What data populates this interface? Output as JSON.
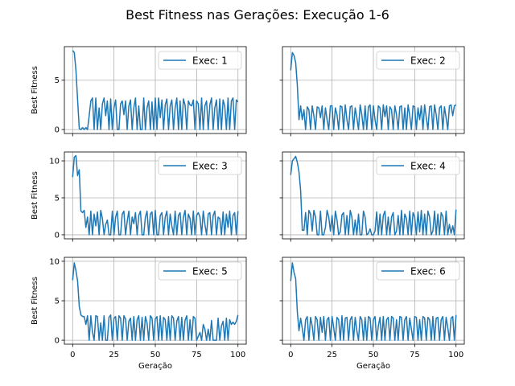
{
  "figure": {
    "title": "Best Fitness nas Gerações: Execução 1-6",
    "series_color": "#1f77b4",
    "grid": true,
    "shared_y_axis_per_row": true
  },
  "chart_data": [
    {
      "type": "line",
      "xlabel": "",
      "ylabel": "Best Fitness",
      "xlim": [
        -5,
        105
      ],
      "ylim": [
        -0.4,
        8.4
      ],
      "xticks": [
        0,
        25,
        50,
        75,
        100
      ],
      "yticks": [
        0,
        5
      ],
      "ytick_labels_shown": true,
      "xtick_labels_shown": false,
      "legend_position": "upper right",
      "series": [
        {
          "name": "Exec: 1",
          "y": [
            8.0,
            7.8,
            6.0,
            3.0,
            0.1,
            0.0,
            0.2,
            0.0,
            0.2,
            0.0,
            1.4,
            2.9,
            3.2,
            0.0,
            3.2,
            0.0,
            2.2,
            0.0,
            2.6,
            3.2,
            1.4,
            2.9,
            0.0,
            3.1,
            0.0,
            2.2,
            3.0,
            0.0,
            0.0,
            2.6,
            2.9,
            1.5,
            2.9,
            0.0,
            2.4,
            3.0,
            0.0,
            2.2,
            3.2,
            0.0,
            2.4,
            0.0,
            0.0,
            3.2,
            0.0,
            2.2,
            2.9,
            0.0,
            2.8,
            0.0,
            3.2,
            0.0,
            3.2,
            1.2,
            3.0,
            0.0,
            2.5,
            3.1,
            0.0,
            2.4,
            3.0,
            0.0,
            2.2,
            3.2,
            0.0,
            2.9,
            0.0,
            3.1,
            2.5,
            0.0,
            2.9,
            2.5,
            2.4,
            3.0,
            0.0,
            2.9,
            2.6,
            0.0,
            3.2,
            0.0,
            2.4,
            2.9,
            0.0,
            2.5,
            3.2,
            0.0,
            2.2,
            3.0,
            0.0,
            3.1,
            0.0,
            3.0,
            2.4,
            0.0,
            3.2,
            0.0,
            2.9,
            3.2,
            0.0,
            3.0,
            2.8
          ]
        }
      ]
    },
    {
      "type": "line",
      "xlabel": "",
      "ylabel": "",
      "xlim": [
        -5,
        105
      ],
      "ylim": [
        -0.4,
        8.4
      ],
      "xticks": [
        0,
        25,
        50,
        75,
        100
      ],
      "yticks": [
        0,
        5
      ],
      "ytick_labels_shown": false,
      "xtick_labels_shown": false,
      "legend_position": "upper right",
      "series": [
        {
          "name": "Exec: 2",
          "y": [
            6.0,
            7.8,
            7.5,
            6.8,
            4.5,
            1.0,
            2.4,
            1.0,
            2.0,
            0.0,
            2.3,
            2.0,
            0.0,
            2.4,
            1.4,
            0.0,
            2.3,
            2.2,
            1.2,
            2.4,
            0.0,
            2.2,
            1.0,
            0.0,
            2.4,
            2.4,
            0.0,
            2.2,
            1.5,
            0.0,
            2.4,
            2.3,
            0.0,
            2.5,
            1.0,
            0.0,
            2.3,
            2.4,
            0.0,
            2.2,
            1.2,
            0.0,
            2.5,
            1.5,
            0.0,
            2.4,
            0.0,
            2.3,
            2.5,
            0.0,
            2.4,
            1.0,
            0.0,
            2.4,
            2.2,
            0.0,
            2.5,
            1.3,
            2.4,
            0.0,
            2.3,
            2.0,
            0.0,
            2.4,
            1.5,
            0.0,
            2.3,
            2.4,
            0.0,
            2.2,
            0.0,
            2.5,
            1.4,
            0.0,
            2.4,
            2.3,
            0.0,
            2.2,
            1.0,
            2.4,
            0.0,
            2.5,
            1.2,
            0.0,
            2.3,
            2.4,
            0.0,
            2.5,
            1.5,
            0.0,
            2.2,
            2.4,
            0.0,
            2.3,
            1.2,
            0.0,
            2.4,
            2.5,
            1.4,
            2.4,
            2.5
          ]
        }
      ]
    },
    {
      "type": "line",
      "xlabel": "",
      "ylabel": "Best Fitness",
      "xlim": [
        -5,
        105
      ],
      "ylim": [
        -0.55,
        11.2
      ],
      "xticks": [
        0,
        25,
        50,
        75,
        100
      ],
      "yticks": [
        0,
        5,
        10
      ],
      "ytick_labels_shown": true,
      "xtick_labels_shown": false,
      "legend_position": "upper right",
      "series": [
        {
          "name": "Exec: 3",
          "y": [
            7.8,
            10.5,
            10.7,
            8.0,
            8.8,
            3.2,
            3.0,
            3.3,
            1.0,
            2.4,
            0.0,
            3.2,
            0.0,
            2.8,
            1.2,
            3.1,
            0.0,
            3.3,
            2.2,
            0.0,
            1.4,
            2.0,
            0.0,
            0.0,
            3.2,
            0.0,
            2.4,
            3.2,
            0.0,
            0.0,
            2.8,
            3.2,
            0.0,
            1.8,
            3.2,
            0.0,
            2.4,
            1.5,
            3.0,
            0.0,
            2.6,
            3.2,
            0.0,
            0.0,
            2.4,
            3.2,
            0.0,
            2.8,
            3.1,
            0.0,
            3.3,
            0.0,
            0.0,
            2.6,
            3.0,
            0.0,
            2.4,
            3.2,
            0.0,
            2.8,
            1.2,
            0.0,
            3.2,
            0.0,
            2.6,
            3.0,
            0.0,
            2.4,
            3.3,
            0.0,
            2.8,
            2.2,
            0.0,
            3.2,
            0.0,
            2.6,
            3.0,
            2.4,
            0.0,
            3.2,
            1.4,
            0.0,
            2.8,
            3.0,
            0.0,
            2.6,
            3.2,
            0.0,
            2.4,
            2.2,
            0.0,
            3.1,
            0.0,
            2.8,
            1.0,
            3.2,
            0.0,
            2.6,
            3.0,
            0.0,
            3.2
          ]
        }
      ]
    },
    {
      "type": "line",
      "xlabel": "",
      "ylabel": "",
      "xlim": [
        -5,
        105
      ],
      "ylim": [
        -0.55,
        11.2
      ],
      "xticks": [
        0,
        25,
        50,
        75,
        100
      ],
      "yticks": [
        0,
        5,
        10
      ],
      "ytick_labels_shown": false,
      "xtick_labels_shown": false,
      "legend_position": "upper right",
      "series": [
        {
          "name": "Exec: 4",
          "y": [
            8.1,
            10.0,
            10.3,
            10.6,
            9.8,
            8.5,
            6.0,
            0.6,
            0.6,
            3.0,
            0.0,
            3.3,
            2.8,
            0.5,
            3.3,
            2.4,
            0.0,
            0.0,
            3.2,
            0.0,
            0.0,
            1.0,
            3.3,
            2.4,
            0.5,
            2.6,
            0.0,
            3.2,
            2.0,
            0.0,
            0.4,
            2.7,
            3.0,
            0.0,
            2.6,
            0.0,
            3.3,
            2.4,
            0.0,
            2.0,
            0.0,
            2.8,
            0.0,
            0.0,
            3.2,
            2.4,
            0.0,
            0.2,
            0.8,
            0.0,
            0.0,
            0.5,
            3.1,
            0.0,
            2.8,
            0.0,
            2.6,
            3.2,
            0.0,
            2.4,
            0.0,
            2.4,
            3.0,
            0.0,
            0.5,
            2.6,
            0.0,
            3.3,
            0.0,
            2.8,
            2.2,
            0.0,
            3.2,
            0.0,
            3.0,
            2.4,
            0.0,
            3.1,
            0.4,
            3.3,
            0.0,
            2.8,
            0.0,
            3.2,
            2.4,
            0.0,
            0.5,
            3.2,
            0.0,
            2.8,
            0.0,
            3.0,
            2.5,
            0.0,
            3.2,
            0.0,
            1.4,
            0.2,
            1.2,
            0.0,
            3.4
          ]
        }
      ]
    },
    {
      "type": "line",
      "xlabel": "Geração",
      "ylabel": "Best Fitness",
      "xlim": [
        -5,
        105
      ],
      "ylim": [
        -0.5,
        10.5
      ],
      "xticks": [
        0,
        25,
        50,
        75,
        100
      ],
      "yticks": [
        0,
        5,
        10
      ],
      "ytick_labels_shown": true,
      "xtick_labels_shown": true,
      "legend_position": "upper right",
      "series": [
        {
          "name": "Exec: 5",
          "y": [
            7.6,
            9.8,
            8.8,
            7.5,
            4.3,
            3.2,
            3.0,
            3.0,
            2.0,
            3.1,
            0.0,
            3.1,
            1.0,
            0.0,
            3.1,
            3.0,
            0.0,
            2.2,
            0.0,
            3.1,
            0.0,
            0.0,
            2.9,
            3.2,
            0.0,
            2.8,
            3.0,
            0.0,
            3.1,
            2.8,
            0.0,
            3.1,
            2.7,
            0.0,
            2.4,
            2.8,
            0.0,
            3.0,
            0.0,
            2.6,
            3.1,
            0.0,
            2.9,
            0.0,
            3.0,
            2.2,
            0.0,
            3.1,
            2.8,
            0.0,
            2.7,
            3.0,
            0.0,
            3.1,
            0.0,
            2.9,
            2.6,
            0.0,
            3.0,
            0.0,
            3.1,
            2.8,
            0.0,
            2.4,
            3.0,
            0.0,
            2.9,
            0.0,
            2.5,
            3.1,
            0.0,
            2.6,
            0.0,
            3.0,
            2.8,
            0.0,
            0.5,
            1.0,
            0.0,
            2.0,
            1.4,
            0.0,
            1.4,
            0.0,
            2.5,
            0.0,
            0.0,
            0.0,
            2.8,
            0.0,
            1.8,
            2.4,
            0.0,
            2.8,
            0.0,
            2.6,
            2.0,
            2.3,
            2.0,
            2.4,
            3.2
          ]
        }
      ]
    },
    {
      "type": "line",
      "xlabel": "Geração",
      "ylabel": "",
      "xlim": [
        -5,
        105
      ],
      "ylim": [
        -0.5,
        10.5
      ],
      "xticks": [
        0,
        25,
        50,
        75,
        100
      ],
      "yticks": [
        0,
        5,
        10
      ],
      "ytick_labels_shown": false,
      "xtick_labels_shown": true,
      "legend_position": "upper right",
      "series": [
        {
          "name": "Exec: 6",
          "y": [
            7.5,
            9.8,
            8.6,
            7.8,
            3.6,
            1.2,
            2.8,
            1.5,
            0.0,
            2.6,
            3.0,
            0.0,
            2.9,
            1.8,
            0.0,
            3.0,
            2.6,
            0.0,
            2.9,
            1.0,
            3.0,
            0.0,
            2.6,
            2.9,
            0.0,
            3.0,
            1.6,
            0.0,
            2.9,
            2.6,
            0.0,
            3.1,
            0.0,
            2.8,
            2.9,
            0.0,
            2.6,
            3.0,
            0.0,
            2.9,
            1.2,
            0.0,
            3.0,
            2.6,
            0.0,
            2.9,
            0.0,
            3.0,
            2.8,
            0.0,
            2.6,
            3.0,
            0.0,
            1.8,
            2.9,
            0.0,
            3.0,
            0.0,
            2.6,
            2.9,
            0.0,
            3.0,
            2.8,
            0.0,
            2.6,
            0.0,
            3.0,
            2.9,
            0.0,
            2.6,
            3.0,
            0.0,
            2.8,
            1.4,
            0.0,
            3.0,
            2.9,
            0.0,
            2.6,
            0.0,
            3.0,
            2.8,
            0.0,
            2.9,
            2.6,
            0.0,
            3.0,
            0.0,
            2.8,
            2.9,
            0.0,
            2.6,
            3.0,
            0.0,
            2.9,
            1.6,
            0.0,
            2.8,
            3.0,
            0.0,
            3.2
          ]
        }
      ]
    }
  ]
}
